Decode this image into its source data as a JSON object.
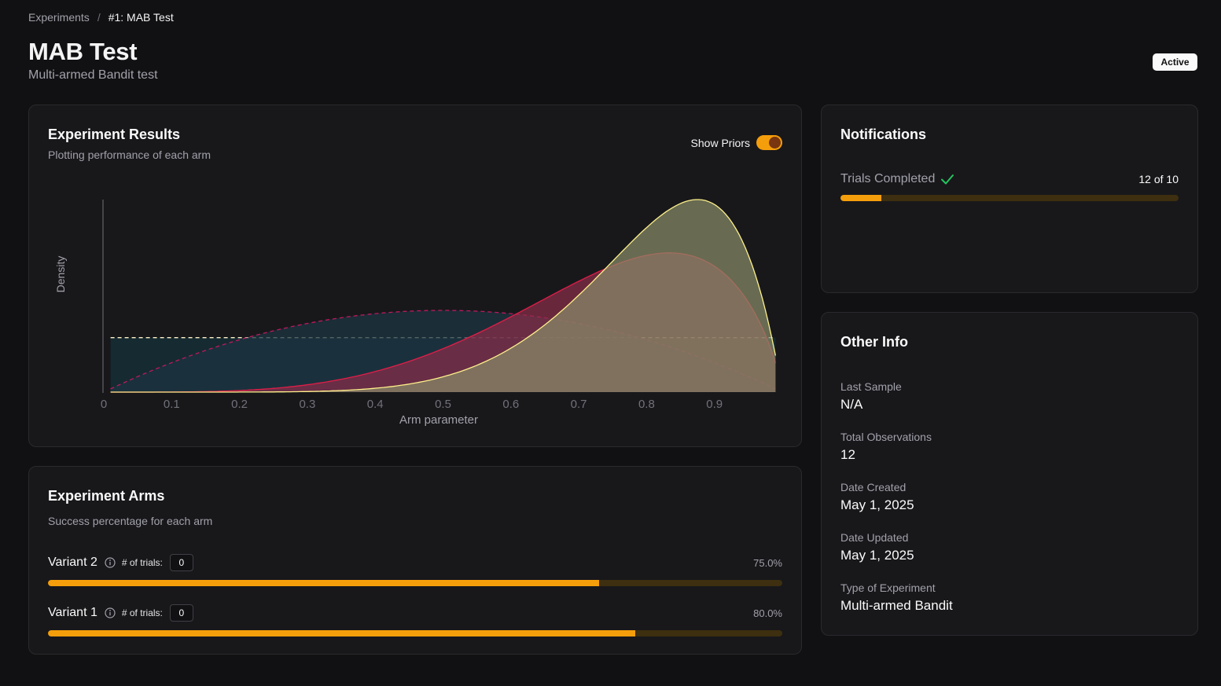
{
  "breadcrumb": {
    "parent": "Experiments",
    "separator": "/",
    "current": "#1: MAB Test"
  },
  "page": {
    "title": "MAB Test",
    "subtitle": "Multi-armed Bandit test",
    "status": "Active"
  },
  "results": {
    "title": "Experiment Results",
    "description": "Plotting performance of each arm",
    "toggle_label": "Show Priors",
    "toggle_on": true
  },
  "chart_data": {
    "type": "area",
    "xlabel": "Arm parameter",
    "ylabel": "Density",
    "xlim": [
      0,
      1
    ],
    "x_ticks": [
      "0",
      "0.1",
      "0.2",
      "0.3",
      "0.4",
      "0.5",
      "0.6",
      "0.7",
      "0.8",
      "0.9"
    ],
    "grid": false,
    "series": [
      {
        "kind": "prior",
        "distribution": "beta",
        "alpha": 1,
        "beta": 1,
        "style": "dashed",
        "stroke": "#fef3c7",
        "fill": "#15303a"
      },
      {
        "kind": "prior",
        "distribution": "beta",
        "alpha": 2,
        "beta": 2,
        "style": "dashed",
        "stroke": "#be185d",
        "fill": "#1c3442"
      },
      {
        "kind": "posterior",
        "distribution": "beta",
        "alpha": 5,
        "beta": 1.8,
        "style": "solid",
        "stroke": "#e11d48",
        "fill": "#8b2d4a"
      },
      {
        "kind": "posterior",
        "distribution": "beta",
        "alpha": 8,
        "beta": 2,
        "style": "solid",
        "stroke": "#fef08a",
        "fill": "#8a8f6a"
      }
    ]
  },
  "arms": {
    "title": "Experiment Arms",
    "description": "Success percentage for each arm",
    "trials_label": "# of trials:",
    "items": [
      {
        "name": "Variant 2",
        "trials": "0",
        "percent_label": "75.0%",
        "percent": 75.0
      },
      {
        "name": "Variant 1",
        "trials": "0",
        "percent_label": "80.0%",
        "percent": 80.0
      }
    ]
  },
  "notifications": {
    "title": "Notifications",
    "trials_label": "Trials Completed",
    "trials_count": "12 of 10",
    "progress_percent": 12
  },
  "other_info": {
    "title": "Other Info",
    "items": [
      {
        "label": "Last Sample",
        "value": "N/A"
      },
      {
        "label": "Total Observations",
        "value": "12"
      },
      {
        "label": "Date Created",
        "value": "May 1, 2025"
      },
      {
        "label": "Date Updated",
        "value": "May 1, 2025"
      },
      {
        "label": "Type of Experiment",
        "value": "Multi-armed Bandit"
      }
    ]
  },
  "colors": {
    "accent": "#f59e0b",
    "accent_track": "#3d2f0f",
    "success": "#22c55e",
    "background": "#111113",
    "card": "#18181b"
  }
}
